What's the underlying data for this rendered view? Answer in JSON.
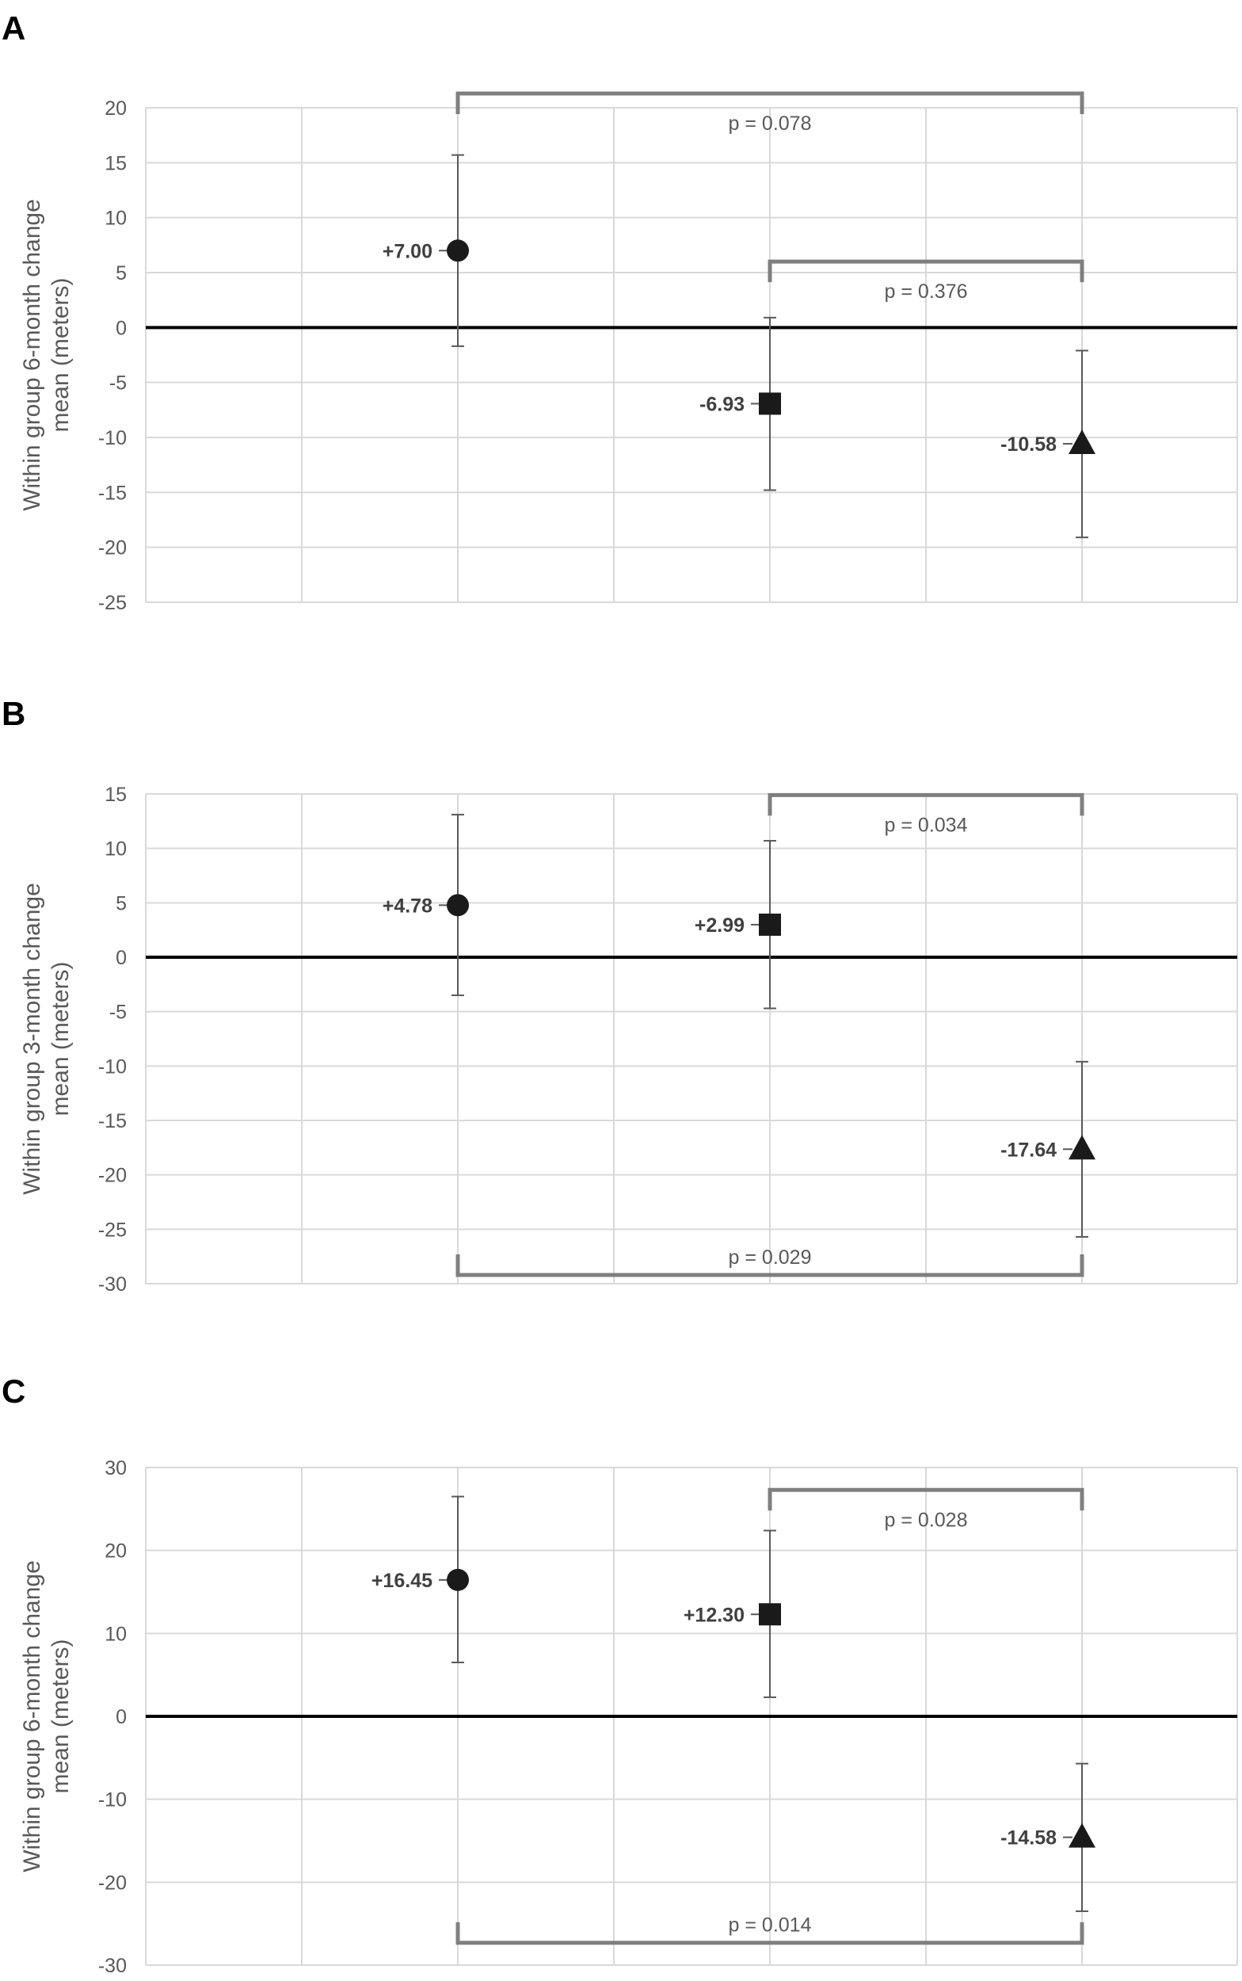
{
  "chart_data": [
    {
      "panel": "A",
      "type": "scatter",
      "ylabel": [
        "Within group 6-month change",
        "mean (meters)"
      ],
      "ylim": [
        -25,
        20
      ],
      "yticks": [
        20,
        15,
        10,
        5,
        0,
        -5,
        -10,
        -15,
        -20,
        -25
      ],
      "grid": true,
      "groups": [
        1,
        2,
        3
      ],
      "points": [
        {
          "x": 1,
          "marker": "circle",
          "value": 7.0,
          "err_low": -1.7,
          "err_high": 15.7,
          "label": "+7.00"
        },
        {
          "x": 2,
          "marker": "square",
          "value": -6.93,
          "err_low": -14.8,
          "err_high": 0.9,
          "label": "-6.93"
        },
        {
          "x": 3,
          "marker": "triangle",
          "value": -10.58,
          "err_low": -19.1,
          "err_high": -2.1,
          "label": "-10.58"
        }
      ],
      "comparisons": [
        {
          "from": 1,
          "to": 3,
          "label": "p = 0.078",
          "y": 21.3,
          "open": "down"
        },
        {
          "from": 2,
          "to": 3,
          "label": "p = 0.376",
          "y": 6.0,
          "open": "down"
        }
      ]
    },
    {
      "panel": "B",
      "type": "scatter",
      "ylabel": [
        "Within group 3-month change",
        "mean (meters)"
      ],
      "ylim": [
        -30,
        15
      ],
      "yticks": [
        15,
        10,
        5,
        0,
        -5,
        -10,
        -15,
        -20,
        -25,
        -30
      ],
      "grid": true,
      "groups": [
        1,
        2,
        3
      ],
      "points": [
        {
          "x": 1,
          "marker": "circle",
          "value": 4.78,
          "err_low": -3.5,
          "err_high": 13.1,
          "label": "+4.78"
        },
        {
          "x": 2,
          "marker": "square",
          "value": 2.99,
          "err_low": -4.7,
          "err_high": 10.7,
          "label": "+2.99"
        },
        {
          "x": 3,
          "marker": "triangle",
          "value": -17.64,
          "err_low": -25.7,
          "err_high": -9.6,
          "label": "-17.64"
        }
      ],
      "comparisons": [
        {
          "from": 2,
          "to": 3,
          "label": "p = 0.034",
          "y": 14.9,
          "open": "down"
        },
        {
          "from": 1,
          "to": 3,
          "label": "p = 0.029",
          "y": -29.2,
          "open": "up"
        }
      ]
    },
    {
      "panel": "C",
      "type": "scatter",
      "ylabel": [
        "Within group 6-month change",
        "mean (meters)"
      ],
      "ylim": [
        -30,
        30
      ],
      "yticks": [
        30,
        20,
        10,
        0,
        -10,
        -20,
        -30
      ],
      "grid": true,
      "groups": [
        1,
        2,
        3
      ],
      "points": [
        {
          "x": 1,
          "marker": "circle",
          "value": 16.45,
          "err_low": 6.5,
          "err_high": 26.5,
          "label": "+16.45"
        },
        {
          "x": 2,
          "marker": "square",
          "value": 12.3,
          "err_low": 2.3,
          "err_high": 22.4,
          "label": "+12.30"
        },
        {
          "x": 3,
          "marker": "triangle",
          "value": -14.58,
          "err_low": -23.5,
          "err_high": -5.7,
          "label": "-14.58"
        }
      ],
      "comparisons": [
        {
          "from": 2,
          "to": 3,
          "label": "p = 0.028",
          "y": 27.3,
          "open": "down"
        },
        {
          "from": 1,
          "to": 3,
          "label": "p = 0.014",
          "y": -27.3,
          "open": "up"
        }
      ]
    }
  ],
  "colors": {
    "grid": "#d9d9d9",
    "zero_line": "#000000",
    "error_bar": "#595959",
    "bracket": "#7f7f7f",
    "marker": "#1a1a1a",
    "label_text": "#404040",
    "axis_text": "#595959"
  }
}
